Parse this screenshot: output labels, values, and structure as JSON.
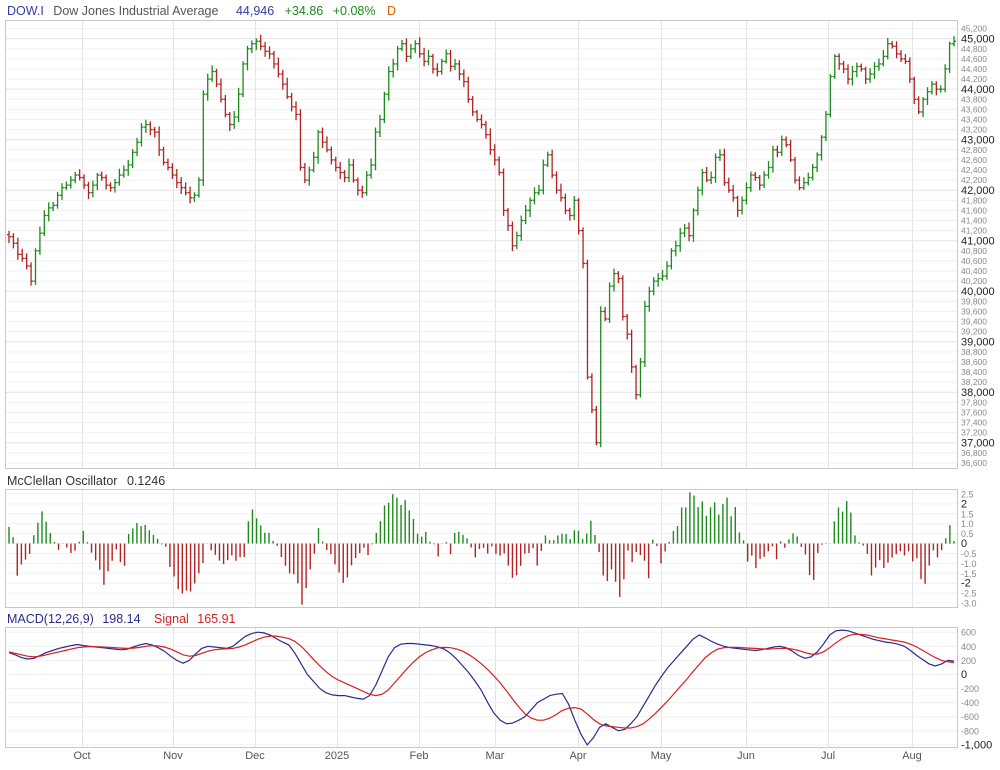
{
  "header": {
    "symbol": "DOW.I",
    "name": "Dow Jones Industrial Average",
    "last": "44,946",
    "change": "+34.86",
    "change_pct": "+0.08%",
    "interval": "D",
    "colors": {
      "symbol": "#3a3aa8",
      "name": "#555555",
      "last": "#3a3aa8",
      "up": "#1e8a1e",
      "interval": "#e06000"
    }
  },
  "oscillator": {
    "title": "McClellan Oscillator",
    "value": "0.1246"
  },
  "macd": {
    "title": "MACD(12,26,9)",
    "value": "198.14",
    "signal_label": "Signal",
    "signal_value": "165.91"
  },
  "colors": {
    "up": "#1e8a1e",
    "down": "#b22222",
    "macd": "#2a2a8c",
    "signal": "#d42020",
    "grid": "#e4e4e4",
    "border": "#c8c8c8"
  },
  "chart_data": [
    {
      "type": "ohlc",
      "series_name": "DOW.I",
      "x_tick_labels": [
        "Oct",
        "Nov",
        "Dec",
        "2025",
        "Feb",
        "Mar",
        "Apr",
        "May",
        "Jun",
        "Jul",
        "Aug"
      ],
      "y_major_labels": [
        "45,000",
        "44,000",
        "43,000",
        "42,000",
        "41,000",
        "40,000",
        "39,000",
        "38,000",
        "37,000"
      ],
      "y_minor_labels": [
        "45,200",
        "44,800",
        "44,600",
        "44,400",
        "44,200",
        "43,800",
        "43,600",
        "43,400",
        "43,200",
        "42,800",
        "42,600",
        "42,400",
        "42,200",
        "41,800",
        "41,600",
        "41,400",
        "41,200",
        "40,800",
        "40,600",
        "40,400",
        "40,200",
        "39,800",
        "39,600",
        "39,400",
        "39,200",
        "38,800",
        "38,600",
        "38,400",
        "38,200",
        "37,800",
        "37,600",
        "37,400",
        "37,200",
        "36,800",
        "36,600"
      ],
      "ylim": [
        36500,
        45350
      ],
      "close": [
        41080,
        40950,
        40730,
        40650,
        40500,
        40200,
        40800,
        41150,
        41500,
        41650,
        41700,
        41900,
        42050,
        42100,
        42200,
        42300,
        42250,
        42100,
        41950,
        42100,
        42300,
        42250,
        42100,
        42050,
        42150,
        42300,
        42400,
        42500,
        42750,
        42950,
        43250,
        43300,
        43200,
        43150,
        42800,
        42550,
        42450,
        42300,
        42150,
        42050,
        41950,
        41850,
        41900,
        42200,
        43900,
        44200,
        44350,
        44100,
        43800,
        43500,
        43300,
        43450,
        43900,
        44500,
        44800,
        44900,
        44950,
        44850,
        44750,
        44700,
        44500,
        44300,
        44100,
        43850,
        43650,
        43500,
        42450,
        42200,
        42400,
        42650,
        43150,
        42950,
        42800,
        42600,
        42450,
        42350,
        42250,
        42500,
        42200,
        42000,
        41950,
        42300,
        42500,
        43150,
        43400,
        43900,
        44350,
        44500,
        44800,
        44900,
        44650,
        44800,
        44900,
        44700,
        44550,
        44650,
        44400,
        44350,
        44550,
        44700,
        44450,
        44500,
        44300,
        44150,
        43800,
        43550,
        43400,
        43300,
        43100,
        42800,
        42600,
        42350,
        41600,
        41300,
        40900,
        41100,
        41400,
        41600,
        41800,
        41950,
        42000,
        42500,
        42700,
        42300,
        42000,
        41850,
        41600,
        41500,
        41800,
        41200,
        40550,
        38300,
        37650,
        37000,
        39600,
        39450,
        40100,
        40350,
        40250,
        39500,
        39150,
        38500,
        37950,
        38600,
        39700,
        40000,
        40200,
        40250,
        40300,
        40500,
        40800,
        40900,
        41150,
        41250,
        41100,
        41600,
        42000,
        42350,
        42200,
        42250,
        42650,
        42700,
        42150,
        42000,
        41850,
        41600,
        41800,
        42050,
        42300,
        42250,
        42100,
        42300,
        42450,
        42800,
        42750,
        43000,
        42900,
        42600,
        42200,
        42050,
        42150,
        42250,
        42450,
        42700,
        43050,
        43500,
        44250,
        44650,
        44500,
        44400,
        44200,
        44350,
        44450,
        44400,
        44200,
        44300,
        44450,
        44500,
        44650,
        44900,
        44850,
        44700,
        44600,
        44550,
        44200,
        43800,
        43550,
        43800,
        43950,
        44100,
        44000,
        44000,
        44400,
        44900,
        44950
      ]
    },
    {
      "type": "bar",
      "series_name": "McClellan Oscillator",
      "y_tick_labels": [
        "2.5",
        "2",
        "1.5",
        "1.0",
        "0.5",
        "0",
        "-0.5",
        "-1.0",
        "-1.5",
        "-2",
        "-2.5",
        "-3.0"
      ],
      "ylim": [
        -3.2,
        2.7
      ],
      "values": [
        0.84,
        0.32,
        -1.62,
        -1.06,
        -0.81,
        -0.52,
        0.42,
        1.05,
        1.62,
        1.1,
        0.53,
        0.08,
        -0.32,
        0.01,
        -0.2,
        -0.48,
        -0.36,
        0.09,
        0.64,
        0.07,
        -0.46,
        -0.85,
        -1.32,
        -2.08,
        -1.4,
        -0.87,
        -0.3,
        -0.94,
        -1.12,
        0.48,
        0.76,
        1.04,
        0.88,
        0.94,
        0.67,
        0.44,
        0.24,
        -0.04,
        -0.16,
        -1.18,
        -1.66,
        -2.3,
        -2.52,
        -2.37,
        -2.42,
        -2.01,
        -1.5,
        -0.98,
        0.01,
        -0.34,
        -0.57,
        -0.86,
        -1.04,
        -0.84,
        -0.6,
        -0.87,
        -0.69,
        -0.68,
        1.12,
        1.72,
        1.27,
        0.92,
        0.54,
        0.54,
        0.13,
        -0.11,
        -0.68,
        -1.12,
        -1.5,
        -1.55,
        -2.01,
        -3.08,
        -2.25,
        -1.3,
        -0.51,
        0.78,
        0.1,
        -0.32,
        -0.54,
        -1.05,
        -1.46,
        -1.98,
        -1.71,
        -1.1,
        -0.73,
        -0.48,
        -0.21,
        -0.58,
        -0.04,
        0.54,
        1.13,
        1.92,
        2.06,
        2.49,
        2.32,
        1.94,
        2.19,
        1.67,
        1.24,
        0.5,
        0.35,
        0.59,
        0.09,
        -0.04,
        -0.65,
        -0.01,
        0.07,
        -0.54,
        0.53,
        0.59,
        0.44,
        0.26,
        -0.2,
        -0.7,
        -0.28,
        -0.21,
        -0.5,
        -0.14,
        -0.52,
        -0.61,
        -0.5,
        -1.11,
        -1.73,
        -1.6,
        -1.12,
        -0.51,
        -0.48,
        -0.23,
        -1.11,
        -0.37,
        0.41,
        0.17,
        0.17,
        0.41,
        0.5,
        0.48,
        0.22,
        0.67,
        0.64,
        0.23,
        0.5,
        1.15,
        0.43,
        -0.43,
        -1.61,
        -1.89,
        -1.3,
        -1.93,
        -2.7,
        -1.8,
        -0.35,
        -0.94,
        -0.43,
        -0.58,
        -0.87,
        -1.75,
        0.2,
        -0.12,
        -1.0,
        -0.4,
        0.08,
        0.64,
        0.88,
        1.82,
        1.82,
        2.59,
        2.42,
        1.84,
        2.12,
        1.4,
        1.83,
        2.08,
        1.46,
        1.99,
        2.32,
        1.38,
        1.84,
        0.56,
        0.16,
        -0.91,
        -0.61,
        -1.24,
        -0.77,
        -0.67,
        -0.39,
        -0.14,
        -0.79,
        0.11,
        -0.21,
        0.21,
        0.51,
        0.36,
        -0.17,
        -0.55,
        -1.59,
        -1.84,
        -0.48,
        -0.06,
        0.02,
        0.01,
        1.12,
        1.82,
        1.61,
        2.14,
        1.56,
        0.41,
        0.06,
        -0.1,
        -0.52,
        -1.61,
        -1.21,
        -0.84,
        -1.23,
        -0.96,
        -0.71,
        -0.54,
        -0.39,
        -0.6,
        -0.39,
        -0.9,
        -0.74,
        -1.78,
        -2.03,
        -1.11,
        -0.35,
        -0.7,
        -0.33,
        0.27,
        0.93,
        0.12
      ]
    },
    {
      "type": "line",
      "y_tick_labels": [
        "600",
        "400",
        "200",
        "0",
        "-200",
        "-400",
        "-600",
        "-800",
        "-1,000"
      ],
      "ylim": [
        -1030,
        660
      ],
      "series": [
        {
          "name": "MACD(12,26,9)",
          "values": [
            310,
            280,
            240,
            220,
            230,
            270,
            310,
            340,
            370,
            390,
            410,
            425,
            410,
            400,
            390,
            380,
            370,
            360,
            350,
            360,
            390,
            420,
            440,
            420,
            380,
            330,
            260,
            200,
            160,
            200,
            290,
            370,
            400,
            390,
            380,
            370,
            400,
            470,
            540,
            580,
            600,
            590,
            560,
            510,
            460,
            420,
            300,
            150,
            0,
            -100,
            -200,
            -260,
            -290,
            -300,
            -300,
            -320,
            -340,
            -350,
            -300,
            -150,
            50,
            250,
            380,
            430,
            440,
            440,
            430,
            420,
            410,
            390,
            360,
            300,
            220,
            120,
            20,
            -100,
            -230,
            -400,
            -550,
            -650,
            -700,
            -690,
            -650,
            -600,
            -500,
            -400,
            -350,
            -300,
            -280,
            -270,
            -420,
            -650,
            -850,
            -1000,
            -900,
            -750,
            -700,
            -750,
            -800,
            -780,
            -700,
            -600,
            -450,
            -300,
            -150,
            -20,
            100,
            200,
            300,
            400,
            500,
            560,
            520,
            470,
            430,
            400,
            380,
            370,
            360,
            350,
            340,
            350,
            370,
            390,
            400,
            380,
            330,
            270,
            230,
            250,
            320,
            430,
            560,
            620,
            630,
            620,
            590,
            560,
            530,
            500,
            480,
            460,
            450,
            430,
            400,
            340,
            270,
            210,
            150,
            120,
            150,
            200,
            190
          ]
        },
        {
          "name": "Signal",
          "values": [
            320,
            300,
            280,
            260,
            250,
            260,
            280,
            300,
            320,
            340,
            360,
            380,
            390,
            395,
            395,
            390,
            385,
            380,
            375,
            370,
            375,
            385,
            400,
            410,
            405,
            390,
            360,
            320,
            280,
            260,
            270,
            300,
            330,
            350,
            360,
            365,
            370,
            390,
            420,
            460,
            500,
            530,
            545,
            545,
            530,
            510,
            470,
            400,
            310,
            210,
            120,
            40,
            -30,
            -80,
            -120,
            -160,
            -200,
            -240,
            -280,
            -300,
            -280,
            -220,
            -120,
            -20,
            80,
            170,
            250,
            310,
            350,
            380,
            385,
            380,
            360,
            330,
            280,
            220,
            150,
            70,
            -20,
            -120,
            -230,
            -350,
            -460,
            -560,
            -620,
            -650,
            -650,
            -620,
            -570,
            -510,
            -480,
            -470,
            -490,
            -560,
            -640,
            -700,
            -730,
            -740,
            -750,
            -760,
            -760,
            -740,
            -700,
            -630,
            -550,
            -460,
            -370,
            -270,
            -170,
            -70,
            40,
            140,
            240,
            310,
            360,
            380,
            385,
            385,
            380,
            375,
            370,
            365,
            360,
            365,
            370,
            370,
            360,
            340,
            310,
            290,
            290,
            320,
            380,
            450,
            510,
            550,
            570,
            570,
            560,
            540,
            520,
            505,
            490,
            475,
            460,
            430,
            390,
            340,
            290,
            240,
            200,
            180,
            170
          ]
        }
      ]
    }
  ]
}
